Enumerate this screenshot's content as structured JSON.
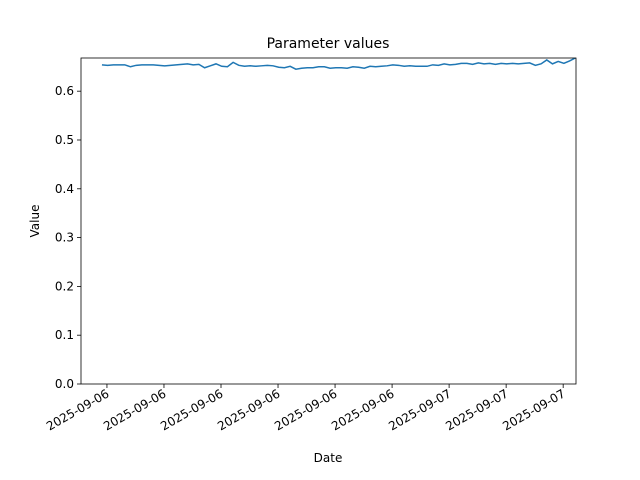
{
  "chart_data": {
    "type": "line",
    "title": "Parameter values",
    "xlabel": "Date",
    "ylabel": "Value",
    "x": [
      -0.35,
      0.05,
      0.45,
      0.85,
      1.25,
      1.65,
      2.05,
      2.45,
      2.85,
      3.25,
      3.65,
      4.05,
      4.45,
      4.85,
      5.25,
      5.65,
      6.05,
      6.45,
      6.85,
      7.25,
      7.65,
      8.05,
      8.45,
      8.85,
      9.25,
      9.65,
      10.05,
      10.45,
      10.85,
      11.25,
      11.65,
      12.05,
      12.45,
      12.85,
      13.25,
      13.65,
      14.05,
      14.45,
      14.85,
      15.25,
      15.65,
      16.05,
      16.45,
      16.85,
      17.25,
      17.65,
      18.05,
      18.45,
      18.85,
      19.25,
      19.65,
      20.05,
      20.45,
      20.85,
      21.25,
      21.65,
      22.05,
      22.45,
      22.85,
      23.25,
      23.65,
      24.05,
      24.45,
      24.85,
      25.25,
      25.65,
      26.05,
      26.45,
      26.85,
      27.25,
      27.65,
      28.05,
      28.45,
      28.85,
      29.25,
      29.65,
      30.05,
      30.45,
      30.85,
      31.25,
      31.65,
      32.05,
      32.45,
      32.85
    ],
    "series": [
      {
        "name": "Value",
        "color": "#1f77b4",
        "values": [
          0.654,
          0.653,
          0.654,
          0.654,
          0.654,
          0.65,
          0.653,
          0.654,
          0.654,
          0.654,
          0.653,
          0.652,
          0.653,
          0.654,
          0.655,
          0.656,
          0.654,
          0.655,
          0.648,
          0.652,
          0.656,
          0.651,
          0.65,
          0.659,
          0.653,
          0.651,
          0.652,
          0.651,
          0.652,
          0.653,
          0.652,
          0.649,
          0.648,
          0.651,
          0.645,
          0.647,
          0.648,
          0.648,
          0.65,
          0.65,
          0.647,
          0.648,
          0.648,
          0.647,
          0.65,
          0.649,
          0.647,
          0.651,
          0.65,
          0.651,
          0.652,
          0.654,
          0.653,
          0.651,
          0.652,
          0.651,
          0.651,
          0.651,
          0.654,
          0.653,
          0.656,
          0.654,
          0.655,
          0.657,
          0.657,
          0.655,
          0.658,
          0.656,
          0.657,
          0.655,
          0.657,
          0.656,
          0.657,
          0.656,
          0.657,
          0.658,
          0.653,
          0.656,
          0.664,
          0.656,
          0.661,
          0.657,
          0.662,
          0.668
        ]
      }
    ],
    "xlim": [
      -1.82,
      32.9
    ],
    "ylim": [
      0,
      0.668
    ],
    "xticks": [
      {
        "value": 0,
        "label": "2025-09-06"
      },
      {
        "value": 4,
        "label": "2025-09-06"
      },
      {
        "value": 8,
        "label": "2025-09-06"
      },
      {
        "value": 12,
        "label": "2025-09-06"
      },
      {
        "value": 16,
        "label": "2025-09-06"
      },
      {
        "value": 20,
        "label": "2025-09-06"
      },
      {
        "value": 24,
        "label": "2025-09-07"
      },
      {
        "value": 28,
        "label": "2025-09-07"
      },
      {
        "value": 32,
        "label": "2025-09-07"
      }
    ],
    "yticks": [
      {
        "value": 0,
        "label": "0.0"
      },
      0.1,
      0.2,
      0.3,
      0.4,
      0.5,
      0.6
    ]
  }
}
